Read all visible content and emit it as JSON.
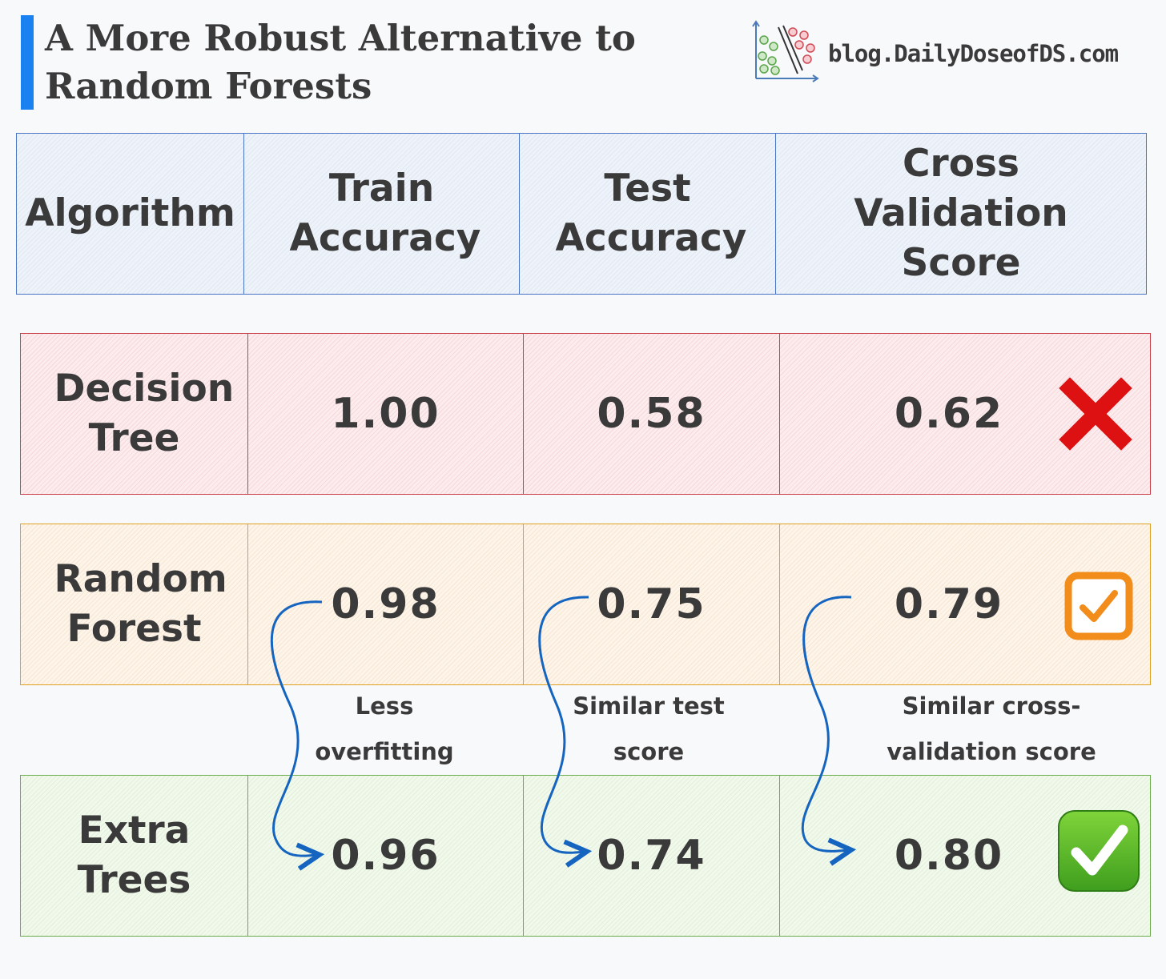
{
  "header": {
    "title": "A More Robust Alternative to Random Forests",
    "site": "blog.DailyDoseofDS.com",
    "logo_icon": "scatter-plot-logo-icon"
  },
  "table": {
    "columns": [
      "Algorithm",
      "Train Accuracy",
      "Test Accuracy",
      "Cross Validation Score"
    ],
    "rows": [
      {
        "name": "Decision Tree",
        "train": "1.00",
        "test": "0.58",
        "cv": "0.62",
        "status_icon": "red-cross-icon"
      },
      {
        "name": "Random Forest",
        "train": "0.98",
        "test": "0.75",
        "cv": "0.79",
        "status_icon": "orange-checkbox-icon"
      },
      {
        "name": "Extra Trees",
        "train": "0.96",
        "test": "0.74",
        "cv": "0.80",
        "status_icon": "green-check-icon"
      }
    ]
  },
  "annotations": [
    {
      "text": "Less overfitting"
    },
    {
      "text": "Similar test score"
    },
    {
      "text": "Similar cross-validation score"
    }
  ],
  "colors": {
    "title_accent": "#1a82f0",
    "header_border": "#4a74c4",
    "decision_tree_border": "#c9404a",
    "random_forest_border": "#e0a020",
    "extra_trees_border": "#6aab4a",
    "arrow": "#1565c0"
  }
}
